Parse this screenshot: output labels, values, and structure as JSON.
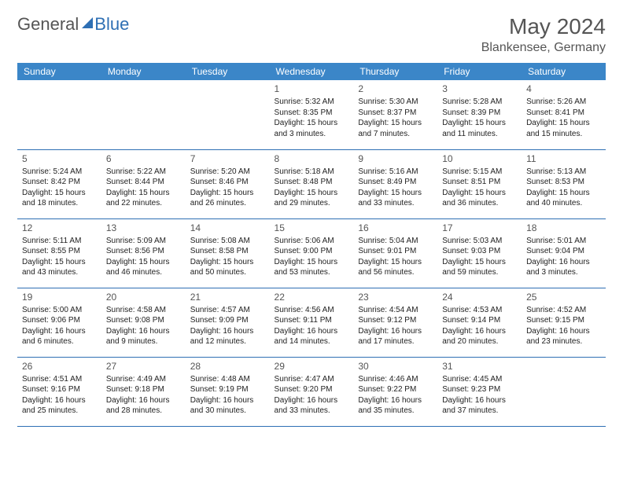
{
  "logo": {
    "part1": "General",
    "part2": "Blue"
  },
  "title": "May 2024",
  "location": "Blankensee, Germany",
  "colors": {
    "header_bg": "#3b86c8",
    "header_text": "#ffffff",
    "row_border": "#2e6fb4",
    "title_color": "#555555",
    "text_color": "#222222"
  },
  "typography": {
    "title_fontsize": 28,
    "location_fontsize": 16,
    "dayhead_fontsize": 12,
    "cell_fontsize": 10
  },
  "calendar": {
    "columns": [
      "Sunday",
      "Monday",
      "Tuesday",
      "Wednesday",
      "Thursday",
      "Friday",
      "Saturday"
    ],
    "first_weekday_index": 3,
    "days_in_month": 31,
    "rows": 5,
    "days": {
      "1": {
        "sunrise": "5:32 AM",
        "sunset": "8:35 PM",
        "daylight": "15 hours and 3 minutes."
      },
      "2": {
        "sunrise": "5:30 AM",
        "sunset": "8:37 PM",
        "daylight": "15 hours and 7 minutes."
      },
      "3": {
        "sunrise": "5:28 AM",
        "sunset": "8:39 PM",
        "daylight": "15 hours and 11 minutes."
      },
      "4": {
        "sunrise": "5:26 AM",
        "sunset": "8:41 PM",
        "daylight": "15 hours and 15 minutes."
      },
      "5": {
        "sunrise": "5:24 AM",
        "sunset": "8:42 PM",
        "daylight": "15 hours and 18 minutes."
      },
      "6": {
        "sunrise": "5:22 AM",
        "sunset": "8:44 PM",
        "daylight": "15 hours and 22 minutes."
      },
      "7": {
        "sunrise": "5:20 AM",
        "sunset": "8:46 PM",
        "daylight": "15 hours and 26 minutes."
      },
      "8": {
        "sunrise": "5:18 AM",
        "sunset": "8:48 PM",
        "daylight": "15 hours and 29 minutes."
      },
      "9": {
        "sunrise": "5:16 AM",
        "sunset": "8:49 PM",
        "daylight": "15 hours and 33 minutes."
      },
      "10": {
        "sunrise": "5:15 AM",
        "sunset": "8:51 PM",
        "daylight": "15 hours and 36 minutes."
      },
      "11": {
        "sunrise": "5:13 AM",
        "sunset": "8:53 PM",
        "daylight": "15 hours and 40 minutes."
      },
      "12": {
        "sunrise": "5:11 AM",
        "sunset": "8:55 PM",
        "daylight": "15 hours and 43 minutes."
      },
      "13": {
        "sunrise": "5:09 AM",
        "sunset": "8:56 PM",
        "daylight": "15 hours and 46 minutes."
      },
      "14": {
        "sunrise": "5:08 AM",
        "sunset": "8:58 PM",
        "daylight": "15 hours and 50 minutes."
      },
      "15": {
        "sunrise": "5:06 AM",
        "sunset": "9:00 PM",
        "daylight": "15 hours and 53 minutes."
      },
      "16": {
        "sunrise": "5:04 AM",
        "sunset": "9:01 PM",
        "daylight": "15 hours and 56 minutes."
      },
      "17": {
        "sunrise": "5:03 AM",
        "sunset": "9:03 PM",
        "daylight": "15 hours and 59 minutes."
      },
      "18": {
        "sunrise": "5:01 AM",
        "sunset": "9:04 PM",
        "daylight": "16 hours and 3 minutes."
      },
      "19": {
        "sunrise": "5:00 AM",
        "sunset": "9:06 PM",
        "daylight": "16 hours and 6 minutes."
      },
      "20": {
        "sunrise": "4:58 AM",
        "sunset": "9:08 PM",
        "daylight": "16 hours and 9 minutes."
      },
      "21": {
        "sunrise": "4:57 AM",
        "sunset": "9:09 PM",
        "daylight": "16 hours and 12 minutes."
      },
      "22": {
        "sunrise": "4:56 AM",
        "sunset": "9:11 PM",
        "daylight": "16 hours and 14 minutes."
      },
      "23": {
        "sunrise": "4:54 AM",
        "sunset": "9:12 PM",
        "daylight": "16 hours and 17 minutes."
      },
      "24": {
        "sunrise": "4:53 AM",
        "sunset": "9:14 PM",
        "daylight": "16 hours and 20 minutes."
      },
      "25": {
        "sunrise": "4:52 AM",
        "sunset": "9:15 PM",
        "daylight": "16 hours and 23 minutes."
      },
      "26": {
        "sunrise": "4:51 AM",
        "sunset": "9:16 PM",
        "daylight": "16 hours and 25 minutes."
      },
      "27": {
        "sunrise": "4:49 AM",
        "sunset": "9:18 PM",
        "daylight": "16 hours and 28 minutes."
      },
      "28": {
        "sunrise": "4:48 AM",
        "sunset": "9:19 PM",
        "daylight": "16 hours and 30 minutes."
      },
      "29": {
        "sunrise": "4:47 AM",
        "sunset": "9:20 PM",
        "daylight": "16 hours and 33 minutes."
      },
      "30": {
        "sunrise": "4:46 AM",
        "sunset": "9:22 PM",
        "daylight": "16 hours and 35 minutes."
      },
      "31": {
        "sunrise": "4:45 AM",
        "sunset": "9:23 PM",
        "daylight": "16 hours and 37 minutes."
      }
    },
    "labels": {
      "sunrise_prefix": "Sunrise: ",
      "sunset_prefix": "Sunset: ",
      "daylight_prefix": "Daylight: "
    }
  }
}
